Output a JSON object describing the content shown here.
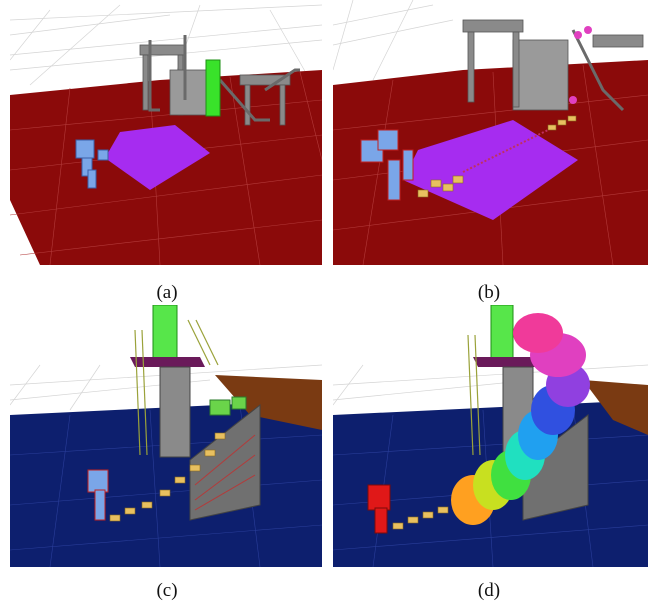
{
  "figure": {
    "captions": [
      "(a)",
      "(b)",
      "(c)",
      "(d)"
    ],
    "colors": {
      "background": "#ffffff",
      "floor_red": "#8b0a0a",
      "floor_blue": "#0d1f6e",
      "grid_line": "#c8c8c8",
      "target_region": "#a62cf0",
      "cylinder": "#39e22a",
      "stair_structure": "#8a8a8a",
      "wall_brown": "#7a3a12",
      "robot_blue": "#7aa6e8",
      "robot_red": "#e01818"
    }
  }
}
